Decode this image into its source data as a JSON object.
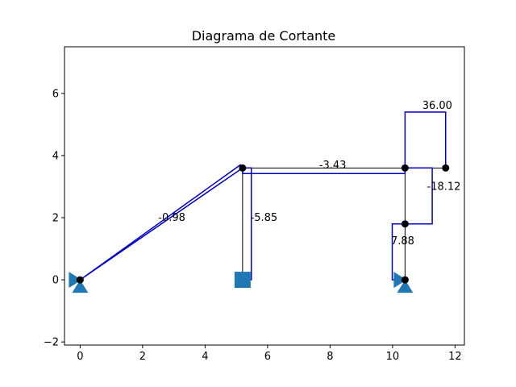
{
  "chart_data": {
    "type": "line",
    "title": "Diagrama de Cortante",
    "xlim": [
      -0.5,
      12.3
    ],
    "ylim": [
      -2.1,
      7.5
    ],
    "x_ticks": [
      0,
      2,
      4,
      6,
      8,
      10,
      12
    ],
    "y_ticks": [
      -2,
      0,
      2,
      4,
      6
    ],
    "grid": false,
    "colors": {
      "structure": "#000000",
      "diagram": "#0000cc",
      "support": "#1f77b4",
      "node": "#000000"
    },
    "nodes": [
      {
        "x": 0,
        "y": 0
      },
      {
        "x": 5.2,
        "y": 3.6
      },
      {
        "x": 10.4,
        "y": 3.6
      },
      {
        "x": 11.7,
        "y": 3.6
      },
      {
        "x": 10.4,
        "y": 1.8
      },
      {
        "x": 10.4,
        "y": 0
      }
    ],
    "members": [
      {
        "from": [
          0,
          0
        ],
        "to": [
          5.2,
          3.6
        ]
      },
      {
        "from": [
          5.2,
          3.6
        ],
        "to": [
          5.2,
          0
        ]
      },
      {
        "from": [
          5.2,
          3.6
        ],
        "to": [
          10.4,
          3.6
        ]
      },
      {
        "from": [
          10.4,
          3.6
        ],
        "to": [
          11.7,
          3.6
        ]
      },
      {
        "from": [
          10.4,
          3.6
        ],
        "to": [
          10.4,
          1.8
        ]
      },
      {
        "from": [
          10.4,
          1.8
        ],
        "to": [
          10.4,
          0
        ]
      }
    ],
    "shear_diagram": [
      {
        "points": [
          [
            0,
            0
          ],
          [
            5.13,
            3.7
          ],
          [
            5.2,
            3.6
          ],
          [
            0,
            0
          ]
        ]
      },
      {
        "points": [
          [
            5.2,
            3.6
          ],
          [
            5.48,
            3.6
          ],
          [
            5.48,
            0
          ],
          [
            5.2,
            0
          ]
        ]
      },
      {
        "points": [
          [
            5.2,
            3.6
          ],
          [
            5.2,
            3.42
          ],
          [
            10.4,
            3.42
          ],
          [
            10.4,
            3.6
          ]
        ]
      },
      {
        "points": [
          [
            10.4,
            3.6
          ],
          [
            10.4,
            5.4
          ],
          [
            11.7,
            5.4
          ],
          [
            11.7,
            3.6
          ]
        ]
      },
      {
        "points": [
          [
            10.4,
            3.6
          ],
          [
            11.27,
            3.6
          ],
          [
            11.27,
            1.8
          ],
          [
            10.4,
            1.8
          ]
        ]
      },
      {
        "points": [
          [
            10.4,
            1.8
          ],
          [
            9.99,
            1.8
          ],
          [
            9.99,
            0
          ],
          [
            10.4,
            0
          ]
        ]
      }
    ],
    "supports": [
      {
        "x": 0,
        "y": 0,
        "kind": "pin-roller"
      },
      {
        "x": 5.2,
        "y": 0,
        "kind": "fixed"
      },
      {
        "x": 10.4,
        "y": 0,
        "kind": "pin-roller"
      }
    ],
    "labels": [
      {
        "text": "-0.98",
        "x": 2.5,
        "y": 2.0
      },
      {
        "text": "-5.85",
        "x": 5.45,
        "y": 2.0
      },
      {
        "text": "-3.43",
        "x": 7.65,
        "y": 3.68
      },
      {
        "text": "36.00",
        "x": 10.95,
        "y": 5.6
      },
      {
        "text": "-18.12",
        "x": 11.1,
        "y": 3.0
      },
      {
        "text": "7.88",
        "x": 9.95,
        "y": 1.25
      }
    ]
  }
}
